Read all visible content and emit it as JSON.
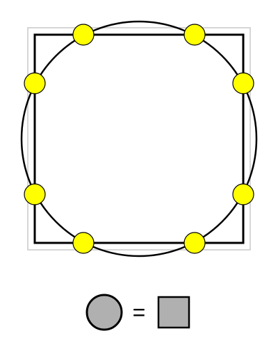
{
  "diagram": {
    "equation": {
      "symbol": "="
    },
    "colors": {
      "background": "#ffffff",
      "outer_square_stroke": "#c8c8c8",
      "square_stroke": "#000000",
      "circle_stroke": "#000000",
      "intersection_fill": "#ffff00",
      "intersection_stroke": "#000000",
      "legend_shape_fill": "#b0b0b0",
      "legend_shape_stroke": "#000000",
      "symbol_color": "#000000"
    },
    "intersection_point_count": 8
  }
}
